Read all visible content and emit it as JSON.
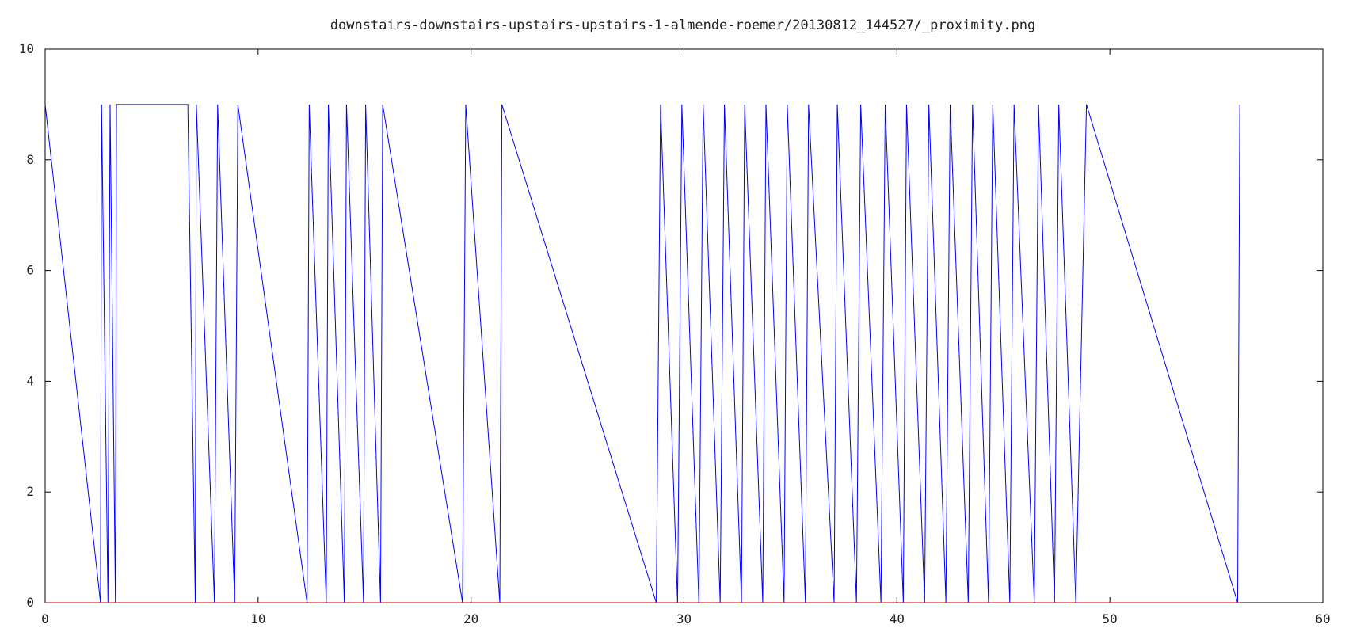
{
  "chart_data": {
    "type": "line",
    "title": "downstairs-downstairs-upstairs-upstairs-1-almende-roemer/20130812_144527/_proximity.png",
    "xlabel": "",
    "ylabel": "",
    "xlim": [
      0,
      60
    ],
    "ylim": [
      0,
      10
    ],
    "x_ticks": [
      0,
      10,
      20,
      30,
      40,
      50,
      60
    ],
    "y_ticks": [
      0,
      2,
      4,
      6,
      8,
      10
    ],
    "grid": false,
    "colors": {
      "series1": "#0000ff",
      "series2": "#cc0000",
      "axis": "#000000"
    },
    "series": [
      {
        "x": [
          0,
          2.6,
          2.65,
          2.95,
          3.05,
          3.3,
          3.35,
          6.7,
          7.05,
          7.1,
          7.95,
          8.1,
          8.9,
          9.05,
          12.3,
          12.4,
          13.2,
          13.3,
          14.05,
          14.15,
          14.95,
          15.05,
          15.75,
          15.85,
          19.6,
          19.75,
          21.35,
          21.45,
          28.7,
          28.9,
          29.7,
          29.9,
          30.7,
          30.9,
          31.7,
          31.9,
          32.7,
          32.85,
          33.7,
          33.85,
          34.7,
          34.85,
          35.7,
          35.85,
          37.05,
          37.2,
          38.1,
          38.3,
          39.25,
          39.45,
          40.3,
          40.45,
          41.3,
          41.5,
          42.3,
          42.5,
          43.35,
          43.55,
          44.3,
          44.5,
          45.3,
          45.5,
          46.45,
          46.65,
          47.4,
          47.6,
          48.4,
          48.9,
          56.0,
          56.1
        ],
        "y": [
          9,
          0,
          9,
          0,
          9,
          0,
          9,
          9,
          0,
          9,
          0,
          9,
          0,
          9,
          0,
          9,
          0,
          9,
          0,
          9,
          0,
          9,
          0,
          9,
          0,
          9,
          0,
          9,
          0,
          9,
          0,
          9,
          0,
          9,
          0,
          9,
          0,
          9,
          0,
          9,
          0,
          9,
          0,
          9,
          0,
          9,
          0,
          9,
          0,
          9,
          0,
          9,
          0,
          9,
          0,
          9,
          0,
          9,
          0,
          9,
          0,
          9,
          0,
          9,
          0,
          9,
          0,
          9,
          0,
          9
        ]
      },
      {
        "x": [
          0,
          56.1
        ],
        "y": [
          0,
          0
        ]
      }
    ]
  }
}
